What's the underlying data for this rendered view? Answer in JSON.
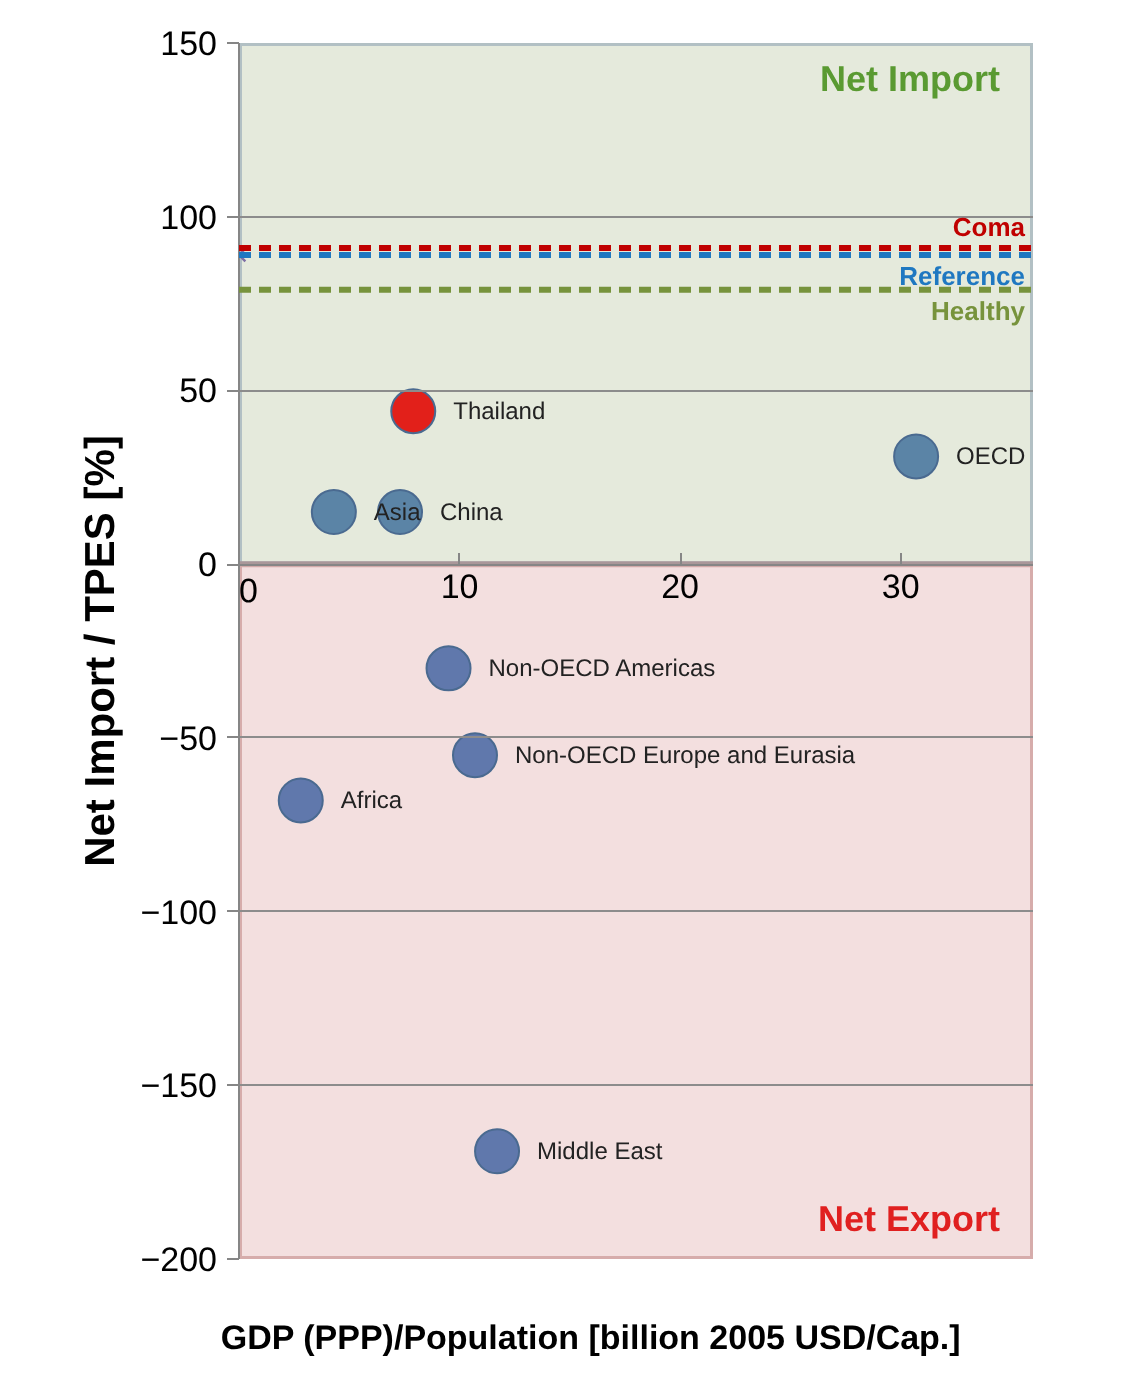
{
  "chart_data": {
    "type": "scatter",
    "xlabel": "GDP (PPP)/Population [billion 2005 USD/Cap.]",
    "ylabel": "Net Import / TPES [%]",
    "xlim": [
      0,
      36
    ],
    "xticks": [
      0,
      10,
      20,
      30
    ],
    "ylim": [
      -200,
      150
    ],
    "yticks": [
      -200,
      -150,
      -100,
      -50,
      0,
      50,
      100,
      150
    ],
    "grid": "y",
    "marker": "circle",
    "series": [
      {
        "name": "Thailand",
        "color": "#e2201a",
        "x": [
          7.9
        ],
        "values": [
          44
        ]
      },
      {
        "name": "Asia",
        "color": "#5b84a6",
        "x": [
          4.3
        ],
        "values": [
          15
        ]
      },
      {
        "name": "China",
        "color": "#5b84a6",
        "x": [
          7.3
        ],
        "values": [
          15
        ]
      },
      {
        "name": "OECD",
        "color": "#5b84a6",
        "x": [
          30.7
        ],
        "values": [
          31
        ]
      },
      {
        "name": "Non-OECD Americas",
        "color": "#6078ac",
        "x": [
          9.5
        ],
        "values": [
          -30
        ]
      },
      {
        "name": "Non-OECD Europe and Eurasia",
        "color": "#6078ac",
        "x": [
          10.7
        ],
        "values": [
          -55
        ]
      },
      {
        "name": "Africa",
        "color": "#6078ac",
        "x": [
          2.8
        ],
        "values": [
          -68
        ]
      },
      {
        "name": "Middle East",
        "color": "#6078ac",
        "x": [
          11.7
        ],
        "values": [
          -169
        ]
      },
      {
        "color": "#7f6fa6",
        "marker": "cross",
        "x": [
          0
        ],
        "values": [
          89
        ]
      }
    ],
    "ref_lines": [
      {
        "axis": "y",
        "value": 91,
        "label": "Coma",
        "color": "#c00000",
        "line_style": "dashed"
      },
      {
        "axis": "y",
        "value": 89,
        "label": "Reference",
        "color": "#1f78c1",
        "line_style": "dashed"
      },
      {
        "axis": "y",
        "value": 79,
        "label": "Healthy",
        "color": "#77933c",
        "line_style": "dashed"
      }
    ],
    "bands": [
      {
        "axis": "y",
        "from": 0,
        "to": 150,
        "label": "Net Import",
        "color": "#e2e8d8"
      },
      {
        "axis": "y",
        "from": -200,
        "to": 0,
        "label": "Net Export",
        "color": "#f2dcdb"
      }
    ]
  }
}
